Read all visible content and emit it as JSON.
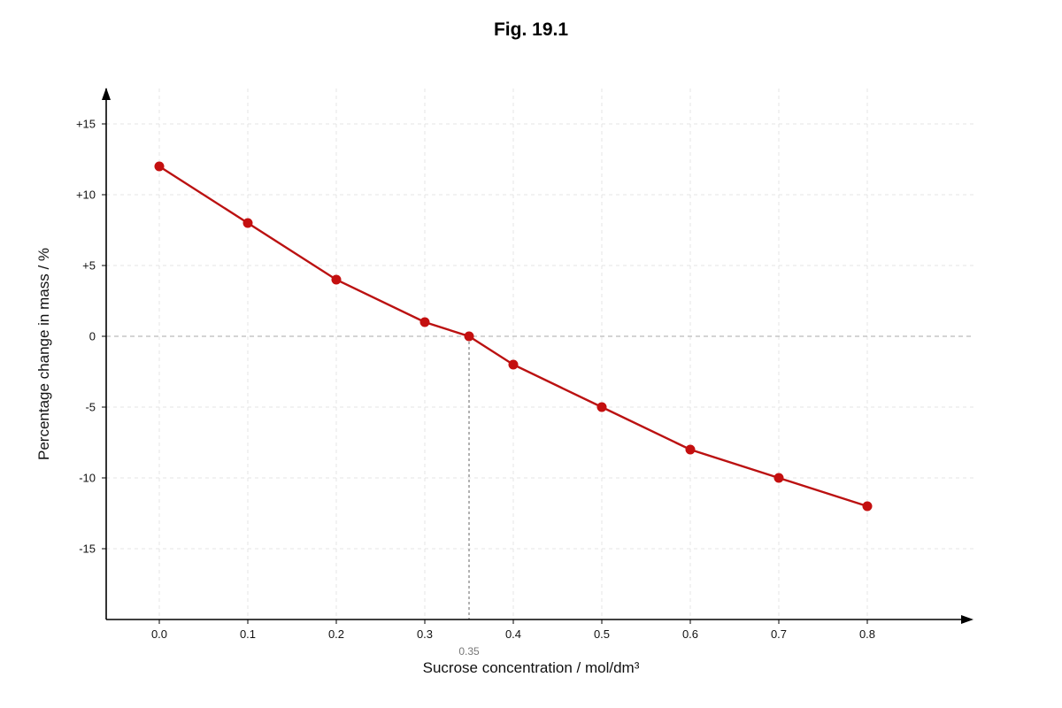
{
  "chart_data": {
    "type": "line",
    "title": "Fig. 19.1",
    "xlabel": "Sucrose concentration / mol/dm³",
    "ylabel": "Percentage change in mass / %",
    "xlim": [
      -0.06,
      0.92
    ],
    "ylim": [
      -20,
      17.5
    ],
    "x_ticks": [
      0.0,
      0.1,
      0.2,
      0.3,
      0.4,
      0.5,
      0.6,
      0.7,
      0.8
    ],
    "x_tick_labels": [
      "0.0",
      "0.1",
      "0.2",
      "0.3",
      "0.4",
      "0.5",
      "0.6",
      "0.7",
      "0.8"
    ],
    "y_ticks": [
      15,
      10,
      5,
      0,
      -5,
      -10,
      -15
    ],
    "y_tick_labels": [
      "+15",
      "+10",
      "+5",
      "0",
      "-5",
      "-10",
      "-15"
    ],
    "grid": true,
    "series": [
      {
        "x": [
          0.0,
          0.1,
          0.2,
          0.3,
          0.35,
          0.4,
          0.5,
          0.6,
          0.7,
          0.8
        ],
        "y": [
          12,
          8,
          4,
          1,
          0,
          -2,
          -5,
          -8,
          -10,
          -12
        ],
        "color": "#c40f0f"
      }
    ],
    "annotations": [
      {
        "type": "vertical_guide",
        "x": 0.35,
        "label": "0.35"
      },
      {
        "type": "horizontal_guide",
        "y": 0
      }
    ]
  }
}
